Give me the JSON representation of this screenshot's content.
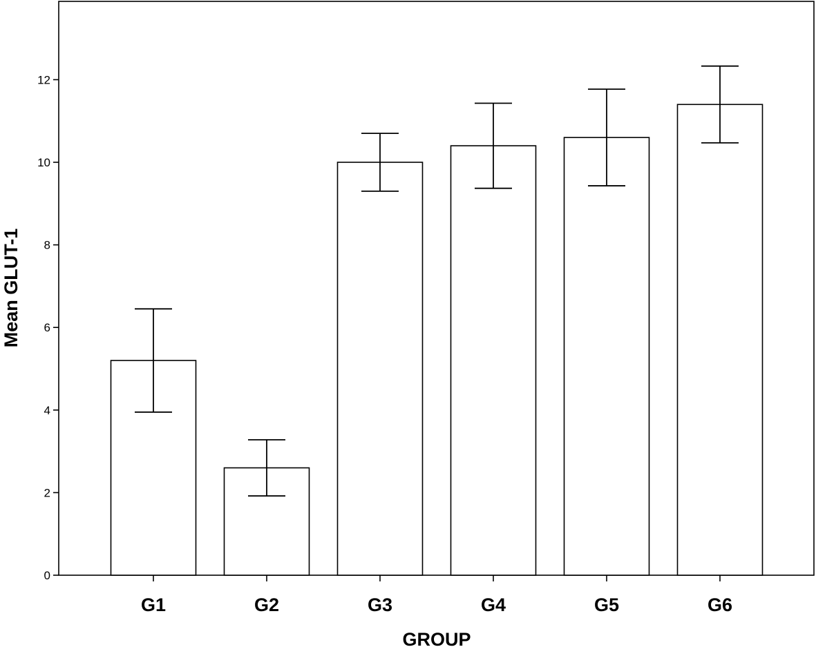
{
  "chart_data": {
    "type": "bar",
    "title": "",
    "xlabel": "GROUP",
    "ylabel": "Mean GLUT-1",
    "categories": [
      "G1",
      "G2",
      "G3",
      "G4",
      "G5",
      "G6"
    ],
    "values": [
      5.2,
      2.6,
      10.0,
      10.4,
      10.6,
      11.4
    ],
    "error_bars": {
      "lower": [
        3.95,
        1.92,
        9.3,
        9.37,
        9.43,
        10.47
      ],
      "upper": [
        6.45,
        3.28,
        10.7,
        11.43,
        11.77,
        12.33
      ]
    },
    "ylim": [
      0,
      13.9
    ],
    "yticks": [
      0,
      2,
      4,
      6,
      8,
      10,
      12
    ],
    "grid": false,
    "legend": "none",
    "colors": {
      "bar_fill": "#ffffff",
      "bar_stroke": "#000000",
      "axis": "#000000"
    }
  }
}
